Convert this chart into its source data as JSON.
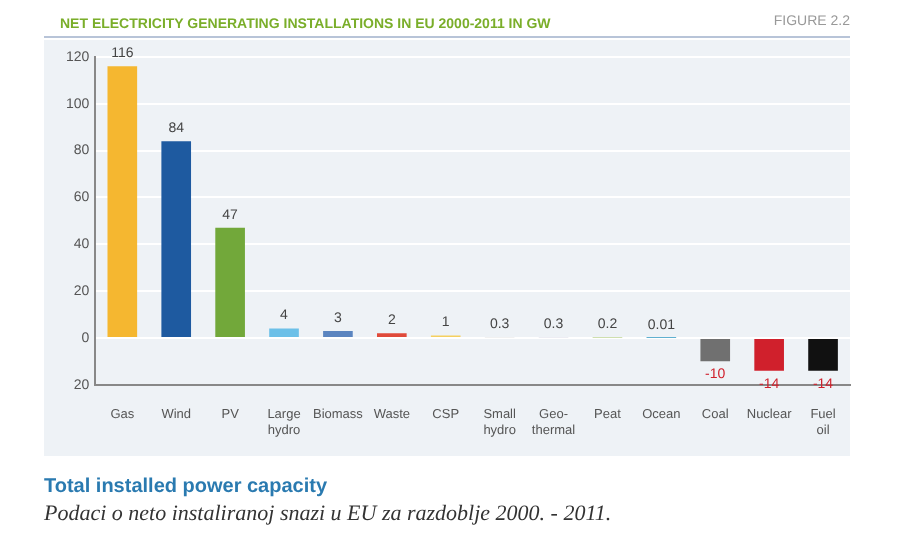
{
  "chart_data": {
    "type": "bar",
    "title": "NET ELECTRICITY GENERATING INSTALLATIONS IN EU 2000-2011 IN GW",
    "categories": [
      "Gas",
      "Wind",
      "PV",
      "Large hydro",
      "Biomass",
      "Waste",
      "CSP",
      "Small hydro",
      "Geo-thermal",
      "Peat",
      "Ocean",
      "Coal",
      "Nuclear",
      "Fuel oil"
    ],
    "values": [
      116,
      84,
      47,
      4,
      3,
      2,
      1,
      0.3,
      0.3,
      0.2,
      0.01,
      -10,
      -14,
      -14
    ],
    "colors": [
      "#f5b730",
      "#1e5aa0",
      "#72a83a",
      "#6cc0e8",
      "#5b85c0",
      "#e04a3a",
      "#f5d060",
      "#c8c8c8",
      "#b8b8d0",
      "#a0c060",
      "#60b0d0",
      "#707070",
      "#d0202c",
      "#111111"
    ],
    "ylim": [
      -20,
      120
    ],
    "yticks": [
      {
        "value": -20,
        "label": "20"
      },
      0,
      20,
      40,
      60,
      80,
      100,
      120
    ],
    "grid": "y",
    "legend": false,
    "data_labels": true,
    "annotations": [
      "FIGURE 2.2",
      "Total installed power capacity",
      "Podaci o neto instaliranoj snazi u EU za razdoblje 2000. - 2011."
    ]
  }
}
